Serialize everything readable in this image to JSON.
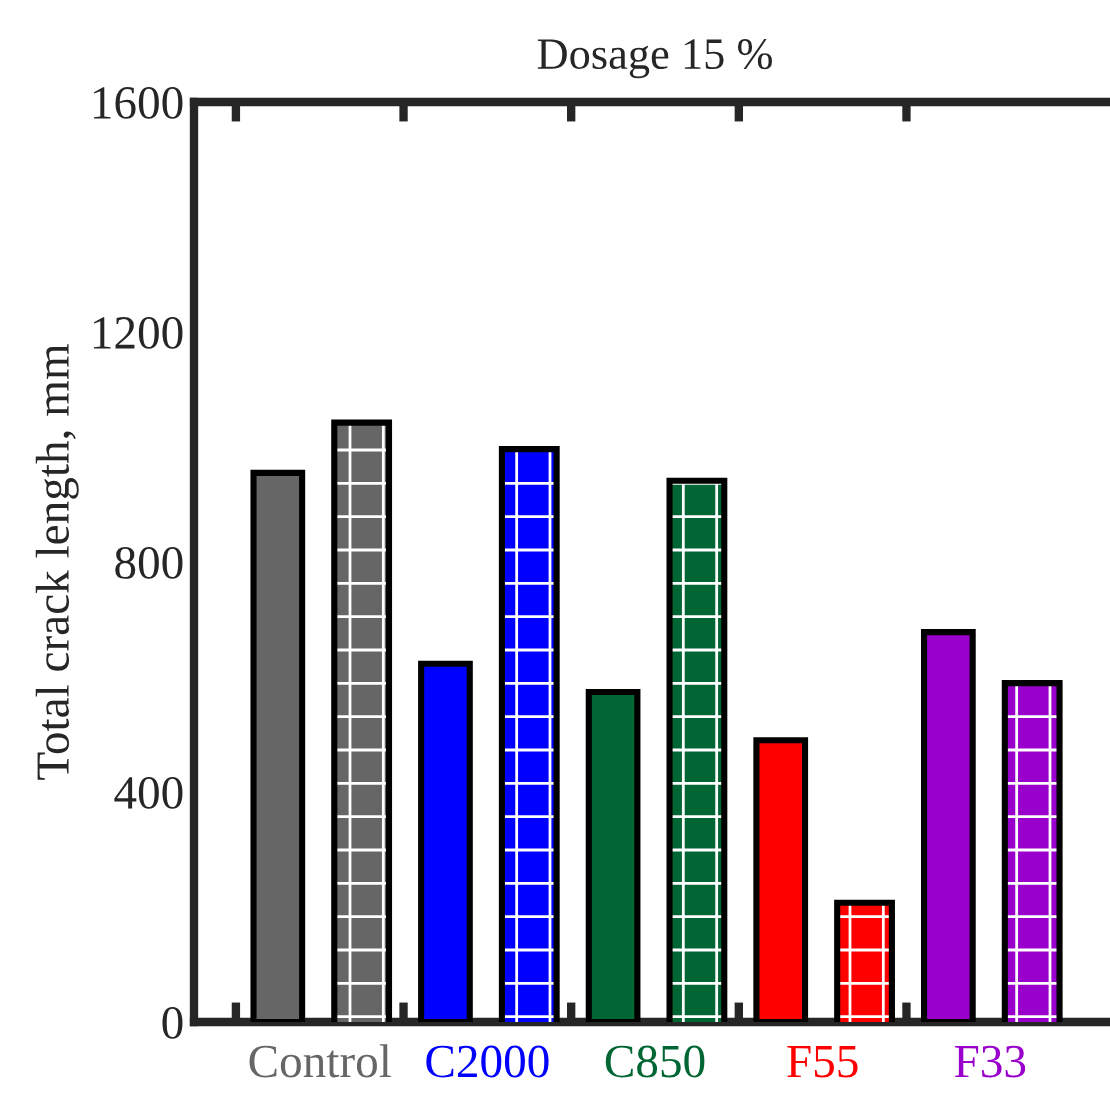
{
  "chart_data": {
    "type": "bar",
    "title": "Dosage 15 %",
    "ylabel": "Total crack length, mm",
    "categories": [
      "Control",
      "C2000",
      "C850",
      "F55",
      "F33"
    ],
    "series": [
      {
        "values": [
          955,
          623,
          574,
          490,
          678
        ],
        "colors": [
          "#666666",
          "#0000ff",
          "#006633",
          "#ff0000",
          "#9900cc"
        ]
      },
      {
        "values": [
          1037,
          991,
          936,
          202,
          584
        ],
        "colors": [
          "#666666",
          "#0000ff",
          "#006633",
          "#ff0000",
          "#9900cc"
        ]
      }
    ],
    "ylim": [
      0,
      1600
    ],
    "yticks": [
      0,
      400,
      800,
      1200,
      1600
    ],
    "grid": false,
    "legend": false
  }
}
